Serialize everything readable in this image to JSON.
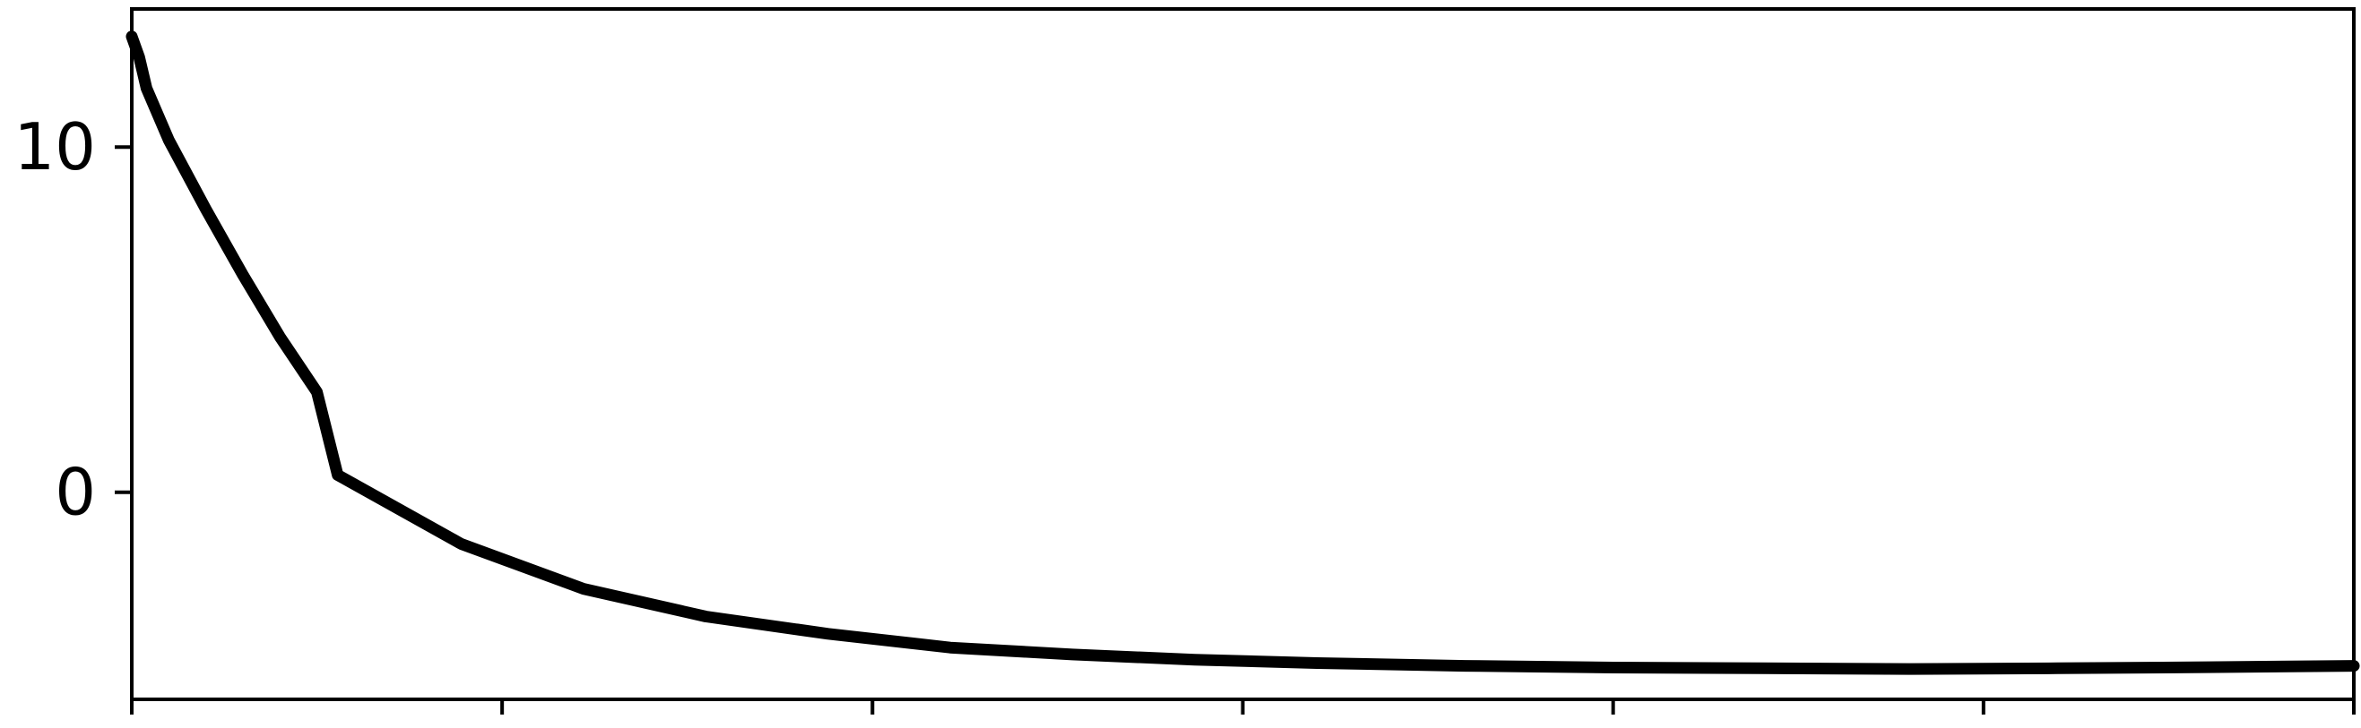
{
  "chart_data": {
    "type": "line",
    "title": "",
    "xlabel": "",
    "ylabel": "",
    "xlim": [
      0,
      30
    ],
    "ylim": [
      -6,
      14
    ],
    "x_ticks": [
      0,
      5,
      10,
      15,
      20,
      25,
      30
    ],
    "y_ticks": [
      {
        "value": 10,
        "label": "10"
      },
      {
        "value": 0,
        "label": "0"
      }
    ],
    "grid": false,
    "series": [
      {
        "values": [
          {
            "x": 0.0,
            "y": 13.2
          },
          {
            "x": 0.1,
            "y": 12.6
          },
          {
            "x": 0.2,
            "y": 11.7
          },
          {
            "x": 0.5,
            "y": 10.2
          },
          {
            "x": 1.0,
            "y": 8.2
          },
          {
            "x": 1.5,
            "y": 6.3
          },
          {
            "x": 2.0,
            "y": 4.5
          },
          {
            "x": 2.5,
            "y": 2.9
          },
          {
            "x": 2.78,
            "y": 0.5
          },
          {
            "x": 4.45,
            "y": -1.5
          },
          {
            "x": 6.1,
            "y": -2.8
          },
          {
            "x": 7.75,
            "y": -3.6
          },
          {
            "x": 9.4,
            "y": -4.1
          },
          {
            "x": 11.05,
            "y": -4.5
          },
          {
            "x": 12.7,
            "y": -4.7
          },
          {
            "x": 14.35,
            "y": -4.85
          },
          {
            "x": 16.0,
            "y": -4.95
          },
          {
            "x": 18.0,
            "y": -5.03
          },
          {
            "x": 20.0,
            "y": -5.08
          },
          {
            "x": 22.0,
            "y": -5.1
          },
          {
            "x": 24.0,
            "y": -5.12
          },
          {
            "x": 26.0,
            "y": -5.1
          },
          {
            "x": 28.0,
            "y": -5.07
          },
          {
            "x": 30.0,
            "y": -5.03
          }
        ],
        "color": "#000000"
      }
    ]
  }
}
